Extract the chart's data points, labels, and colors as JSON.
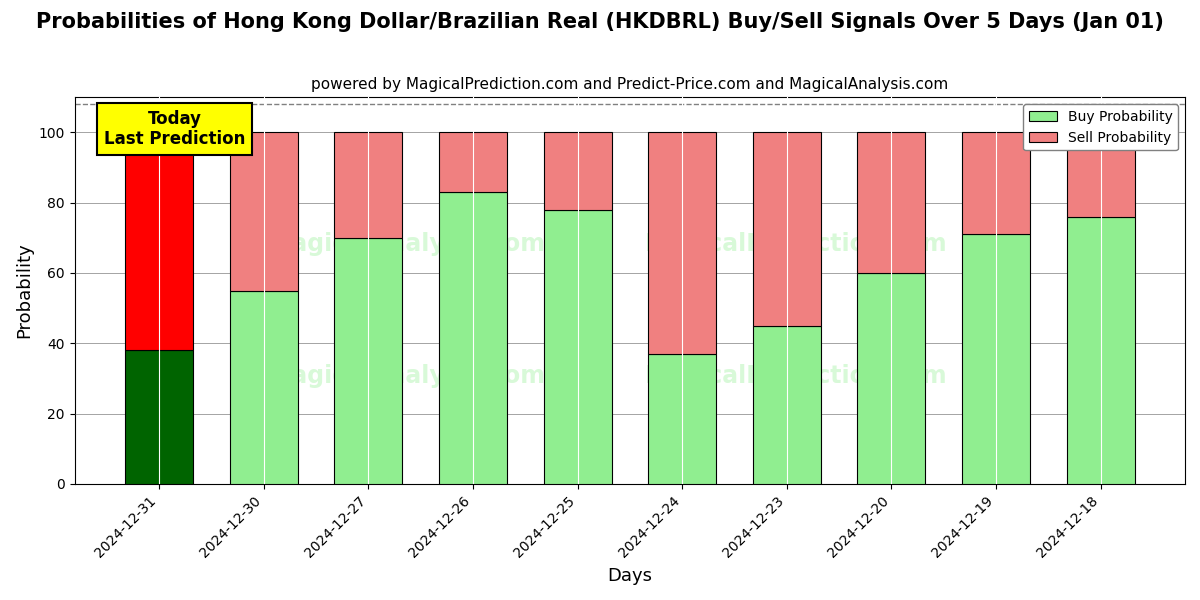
{
  "title": "Probabilities of Hong Kong Dollar/Brazilian Real (HKDBRL) Buy/Sell Signals Over 5 Days (Jan 01)",
  "subtitle": "powered by MagicalPrediction.com and Predict-Price.com and MagicalAnalysis.com",
  "xlabel": "Days",
  "ylabel": "Probability",
  "categories": [
    "2024-12-31",
    "2024-12-30",
    "2024-12-27",
    "2024-12-26",
    "2024-12-25",
    "2024-12-24",
    "2024-12-23",
    "2024-12-20",
    "2024-12-19",
    "2024-12-18"
  ],
  "buy_values": [
    38,
    55,
    70,
    83,
    78,
    37,
    45,
    60,
    71,
    76
  ],
  "sell_values": [
    62,
    45,
    30,
    17,
    22,
    63,
    55,
    40,
    29,
    24
  ],
  "buy_color_first": "#006400",
  "sell_color_first": "#ff0000",
  "buy_color_rest": "#90ee90",
  "sell_color_rest": "#f08080",
  "today_box_color": "#ffff00",
  "today_label_line1": "Today",
  "today_label_line2": "Last Prediction",
  "ylim": [
    0,
    110
  ],
  "dashed_line_y": 108,
  "legend_buy": "Buy Probability",
  "legend_sell": "Sell Probability",
  "title_fontsize": 15,
  "subtitle_fontsize": 11,
  "axis_label_fontsize": 13,
  "tick_fontsize": 10
}
